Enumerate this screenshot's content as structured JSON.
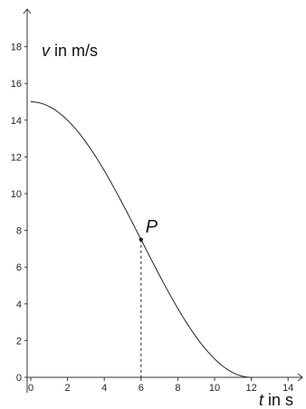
{
  "chart_data": {
    "type": "line",
    "xlabel_var": "t",
    "xlabel_unit": " in s",
    "ylabel_var": "v",
    "ylabel_unit": " in m/s",
    "xlim": [
      -1,
      15.5
    ],
    "ylim": [
      -0.6,
      20
    ],
    "xticks": [
      0,
      2,
      4,
      6,
      8,
      10,
      12,
      14
    ],
    "yticks": [
      0,
      2,
      4,
      6,
      8,
      10,
      12,
      14,
      16,
      18
    ],
    "grid": false,
    "series": [
      {
        "curve": "7.5*(1+cos(pi*t/12))",
        "x": [
          0,
          1,
          2,
          3,
          4,
          5,
          6,
          7,
          8,
          9,
          10,
          11,
          12
        ],
        "y": [
          15,
          14.74,
          14.0,
          12.8,
          11.25,
          9.44,
          7.5,
          5.56,
          3.75,
          2.2,
          1.0,
          0.26,
          0
        ]
      }
    ],
    "annotations": [
      {
        "label": "P",
        "x": 6,
        "y": 7.5,
        "dashed_drop_to_x_axis": true
      }
    ]
  }
}
